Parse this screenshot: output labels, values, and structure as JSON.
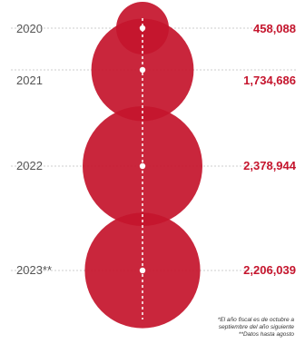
{
  "chart_data": {
    "type": "bubble",
    "title": "",
    "categories": [
      "2020",
      "2021",
      "2022",
      "2023**"
    ],
    "values": [
      458088,
      1734686,
      2378944,
      2206039
    ],
    "value_labels": [
      "458,088",
      "1,734,686",
      "2,378,944",
      "2,206,039"
    ],
    "bubble_color": "#c5152d",
    "value_color": "#c5152d",
    "gridlines": "dotted"
  },
  "footnotes": [
    "*El año fiscal es de octubre a",
    "septiembre del año siguiente",
    "**Datos hasta agosto"
  ]
}
